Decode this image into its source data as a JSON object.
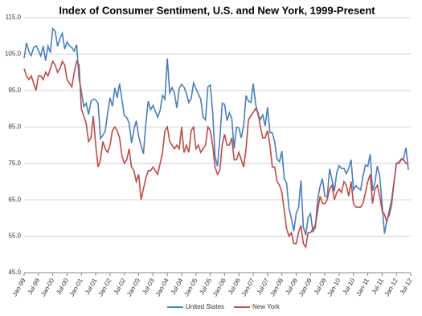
{
  "chart_data": {
    "type": "line",
    "title": "Index of Consumer Sentiment, U.S. and New York, 1999-Present",
    "categories": [
      "Jan-99",
      null,
      null,
      null,
      null,
      null,
      "Jul-99",
      null,
      null,
      null,
      null,
      null,
      "Jan-00",
      null,
      null,
      null,
      null,
      null,
      "Jul-00",
      null,
      null,
      null,
      null,
      null,
      "Jan-01",
      null,
      null,
      null,
      null,
      null,
      "Jul-01",
      null,
      null,
      null,
      null,
      null,
      "Jan-02",
      null,
      null,
      null,
      null,
      null,
      "Jul-02",
      null,
      null,
      null,
      null,
      null,
      "Jan-03",
      null,
      null,
      null,
      null,
      null,
      "Jul-03",
      null,
      null,
      null,
      null,
      null,
      "Jan-04",
      null,
      null,
      null,
      null,
      null,
      "Jul-04",
      null,
      null,
      null,
      null,
      null,
      "Jan-05",
      null,
      null,
      null,
      null,
      null,
      "Jul-05",
      null,
      null,
      null,
      null,
      null,
      "Jan-06",
      null,
      null,
      null,
      null,
      null,
      "Jul-06",
      null,
      null,
      null,
      null,
      null,
      "Jan-07",
      null,
      null,
      null,
      null,
      null,
      "Jul-07",
      null,
      null,
      null,
      null,
      null,
      "Jan-08",
      null,
      null,
      null,
      null,
      null,
      "Jul-08",
      null,
      null,
      null,
      null,
      null,
      "Jan-09",
      null,
      null,
      null,
      null,
      null,
      "Jul-09",
      null,
      null,
      null,
      null,
      null,
      "Jan-10",
      null,
      null,
      null,
      null,
      null,
      "Jul-10",
      null,
      null,
      null,
      null,
      null,
      "Jan-11",
      null,
      null,
      null,
      null,
      null,
      "Jul-11",
      null,
      null,
      null,
      null,
      null,
      "Jan-12",
      null,
      null,
      null,
      null,
      null,
      "Jul-12"
    ],
    "series": [
      {
        "name": "United States",
        "color": "#4a7ebb",
        "values": [
          103.9,
          108.1,
          105.7,
          104.6,
          106.8,
          107.3,
          106.0,
          104.5,
          107.2,
          103.2,
          107.2,
          105.4,
          112.0,
          111.3,
          107.1,
          109.2,
          110.7,
          106.4,
          108.3,
          107.3,
          106.8,
          105.8,
          107.6,
          98.4,
          94.7,
          90.6,
          91.5,
          88.4,
          92.0,
          92.6,
          92.4,
          91.5,
          81.8,
          82.7,
          83.9,
          88.8,
          93.0,
          90.7,
          95.7,
          93.0,
          96.9,
          92.4,
          88.1,
          87.6,
          86.1,
          80.6,
          84.2,
          86.7,
          82.4,
          79.9,
          77.6,
          86.0,
          92.1,
          89.7,
          90.9,
          89.3,
          87.7,
          89.6,
          93.7,
          92.6,
          103.8,
          94.4,
          95.8,
          94.2,
          90.2,
          95.6,
          96.7,
          95.9,
          94.2,
          91.7,
          92.8,
          97.1,
          95.5,
          94.1,
          92.6,
          87.7,
          86.9,
          96.0,
          96.5,
          89.1,
          76.9,
          74.2,
          81.6,
          91.5,
          91.2,
          86.7,
          88.9,
          87.4,
          79.1,
          84.9,
          84.7,
          82.0,
          85.4,
          93.6,
          92.1,
          91.7,
          96.9,
          91.3,
          88.4,
          87.1,
          88.3,
          85.3,
          90.4,
          83.4,
          83.4,
          80.9,
          76.1,
          75.5,
          78.4,
          70.8,
          69.5,
          62.6,
          59.8,
          56.4,
          61.2,
          63.0,
          70.3,
          57.6,
          55.3,
          60.1,
          61.2,
          56.3,
          57.3,
          65.1,
          68.7,
          70.8,
          66.0,
          65.7,
          73.5,
          70.6,
          67.4,
          72.5,
          74.4,
          73.6,
          73.6,
          72.2,
          73.6,
          76.0,
          67.8,
          68.9,
          68.2,
          67.7,
          71.6,
          74.5,
          74.2,
          77.5,
          67.5,
          69.8,
          74.3,
          71.5,
          63.7,
          55.7,
          59.4,
          60.8,
          63.7,
          69.9,
          75.0,
          75.3,
          76.2,
          76.4,
          79.3,
          73.2,
          null
        ]
      },
      {
        "name": "New York",
        "color": "#be4b48",
        "values": [
          101,
          99,
          98,
          99,
          97,
          95,
          99,
          99,
          98,
          100,
          99,
          101,
          103,
          102,
          100,
          101,
          103,
          102,
          98,
          97,
          96,
          100,
          103,
          102,
          90,
          88,
          86,
          81,
          82,
          88,
          80,
          74,
          76,
          81,
          79,
          78,
          80,
          84,
          85,
          84,
          82,
          77,
          75,
          76,
          79,
          74,
          73,
          70,
          72,
          65,
          68,
          71,
          73,
          73,
          74,
          73,
          72,
          75,
          78,
          84,
          85,
          81,
          80,
          79,
          80,
          79,
          85,
          78,
          80,
          78,
          84,
          85,
          79,
          80,
          78,
          79,
          80,
          85,
          84,
          80,
          74,
          72,
          73,
          80,
          83,
          80,
          80,
          82,
          76,
          76,
          78,
          76,
          74,
          79,
          87,
          88,
          89,
          90,
          89,
          85,
          82,
          82,
          84,
          80,
          74,
          74,
          70,
          69,
          67,
          62,
          57,
          55,
          56,
          53,
          53,
          56,
          58,
          53,
          52,
          56,
          56,
          57,
          58,
          62,
          66,
          64,
          64,
          65,
          68,
          69,
          65,
          67,
          68,
          67,
          70,
          69,
          66,
          70,
          64,
          63,
          63,
          63,
          64,
          67,
          70,
          72,
          64,
          68,
          69,
          66,
          62,
          61,
          59,
          62,
          65,
          70,
          75,
          75,
          76,
          76,
          75,
          75,
          null
        ]
      }
    ],
    "ylim": [
      45,
      115
    ],
    "yticks": [
      {
        "value": 45,
        "label": "45.0"
      },
      {
        "value": 55,
        "label": "55.0"
      },
      {
        "value": 65,
        "label": "65.0"
      },
      {
        "value": 75,
        "label": "75.0"
      },
      {
        "value": 85,
        "label": "85.0"
      },
      {
        "value": 95,
        "label": "95.0"
      },
      {
        "value": 105,
        "label": "105.0"
      },
      {
        "value": 115,
        "label": "115.0"
      }
    ],
    "grid": true,
    "legend": "bottom"
  }
}
